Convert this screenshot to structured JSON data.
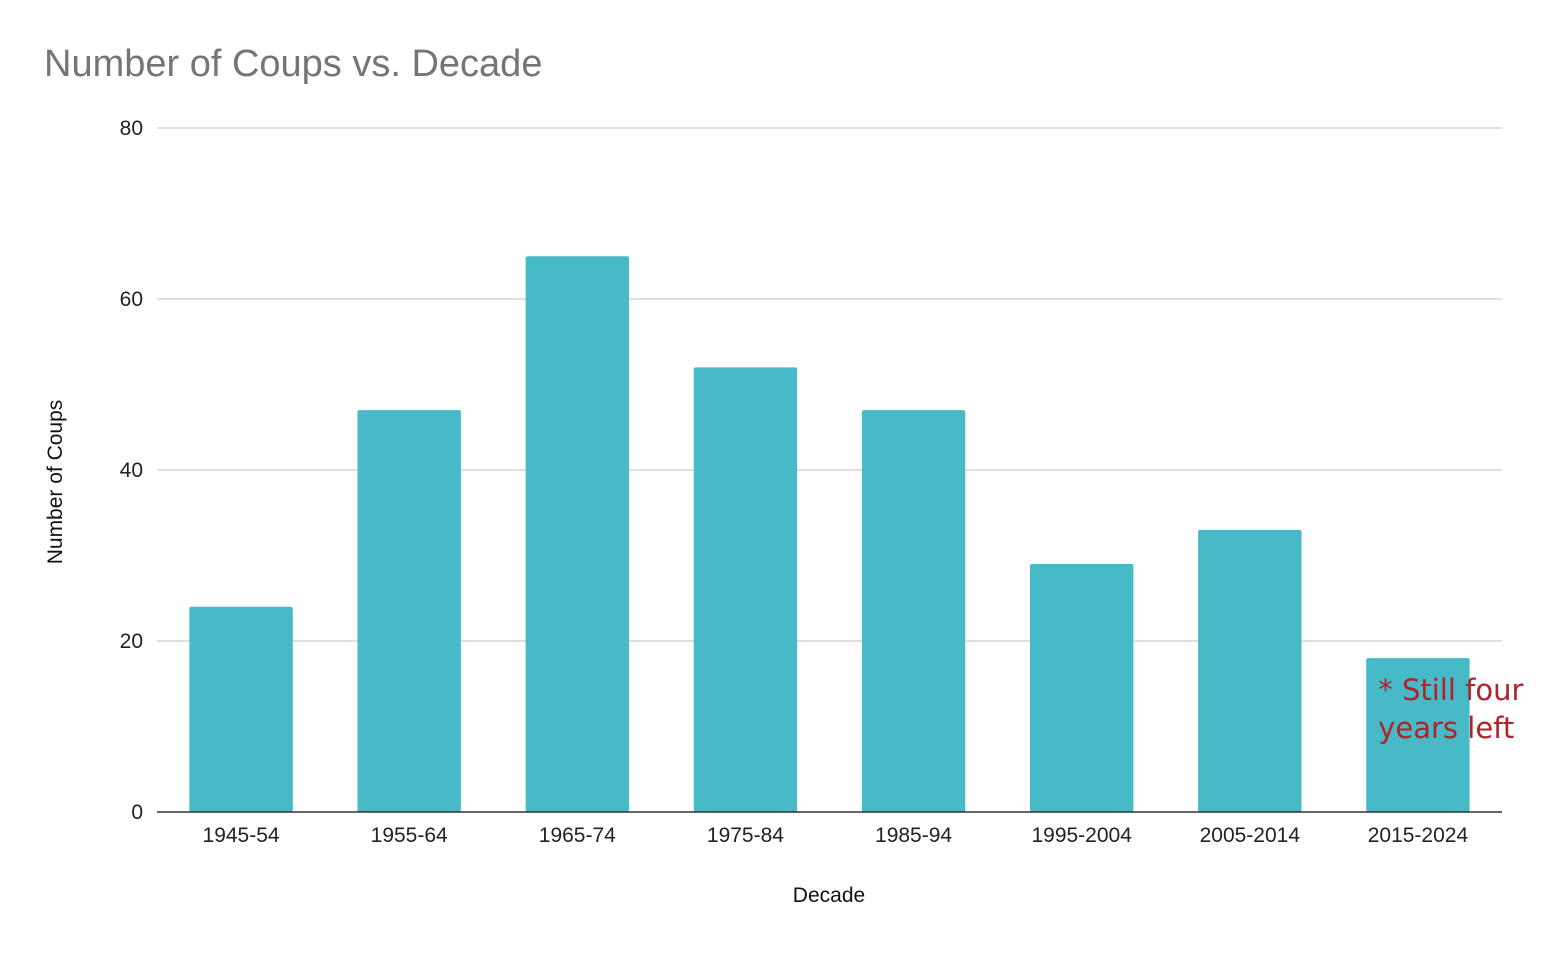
{
  "colors": {
    "bar": "#46bac6",
    "note": "#b1232b",
    "grid": "#cccccc",
    "title": "#757575"
  },
  "chart_data": {
    "type": "bar",
    "title": "Number of Coups vs. Decade",
    "xlabel": "Decade",
    "ylabel": "Number of Coups",
    "categories": [
      "1945-54",
      "1955-64",
      "1965-74",
      "1975-84",
      "1985-94",
      "1995-2004",
      "2005-2014",
      "2015-2024"
    ],
    "values": [
      24,
      47,
      65,
      52,
      47,
      29,
      33,
      18
    ],
    "ylim": [
      0,
      80
    ],
    "yticks": [
      0,
      20,
      40,
      60,
      80
    ],
    "grid": true,
    "legend": "none",
    "annotation": {
      "line1": "* Still four",
      "line2": "years left",
      "category": "2015-2024"
    }
  }
}
